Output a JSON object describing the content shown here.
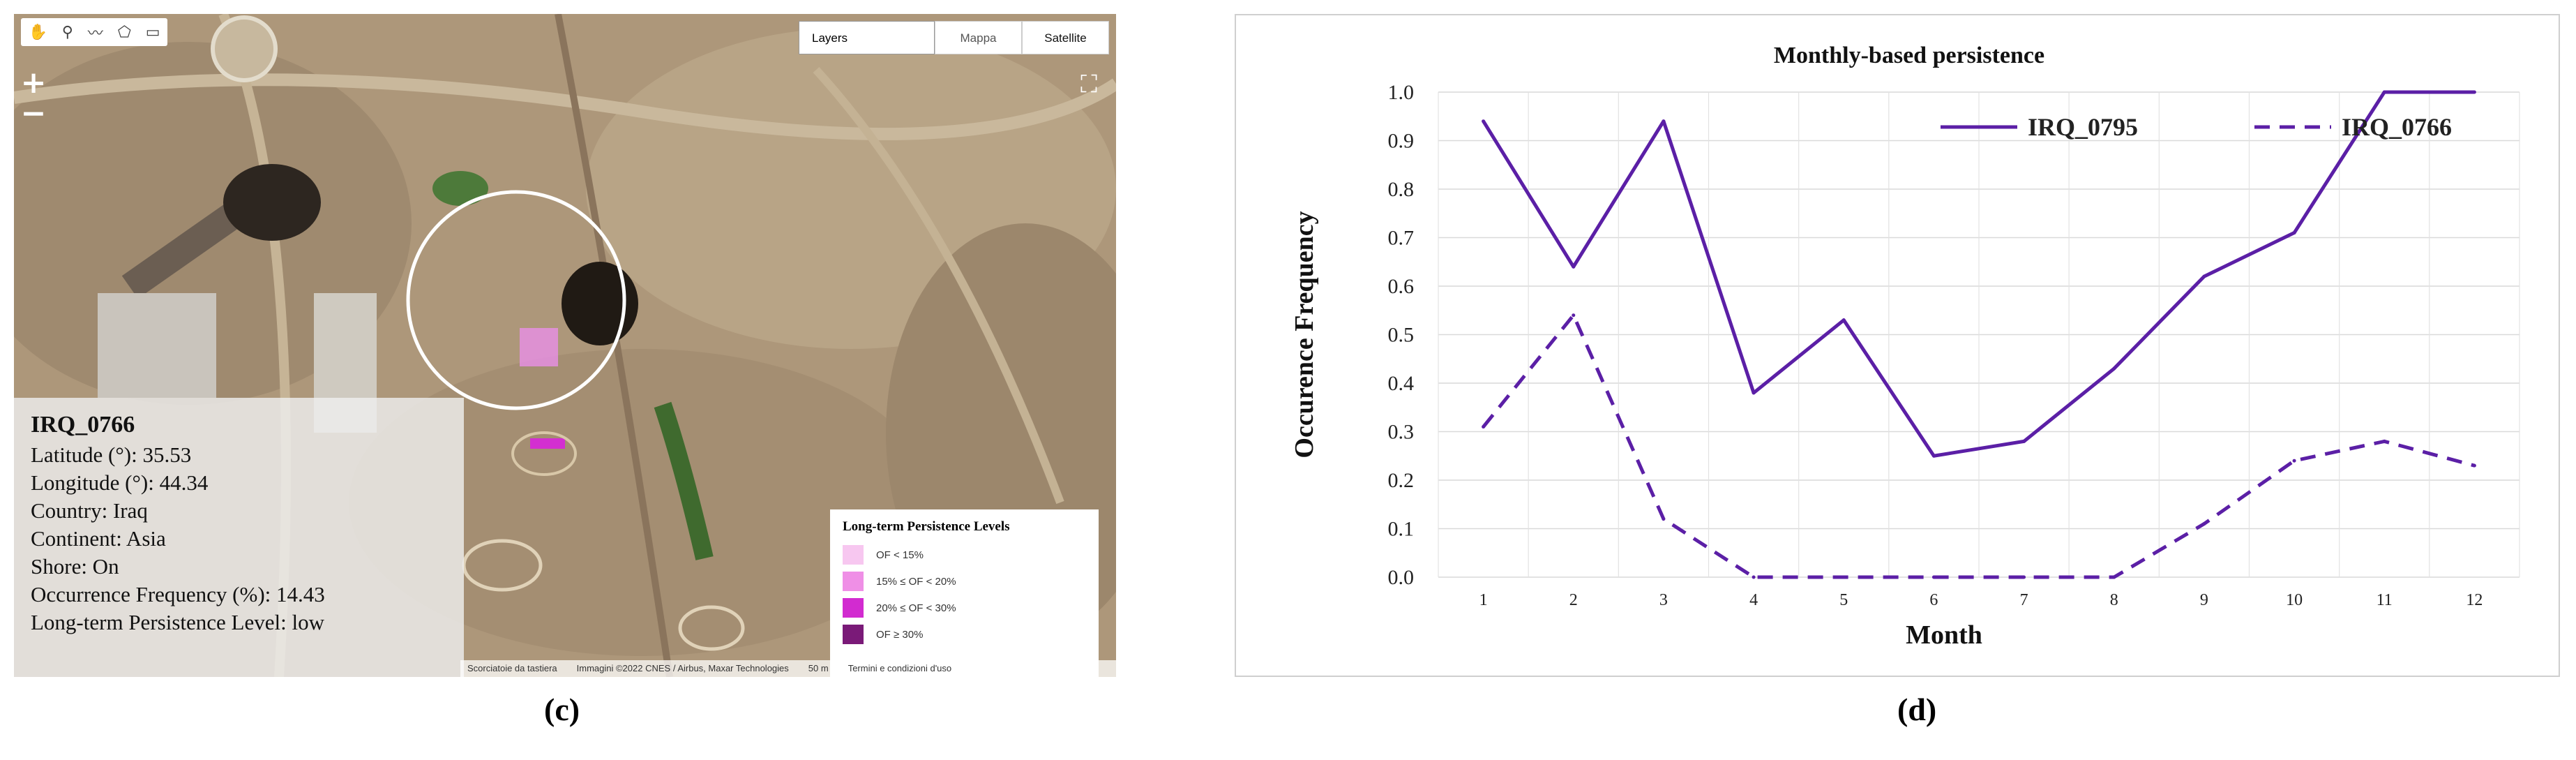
{
  "panels": {
    "c": {
      "label": "(c)",
      "map": {
        "tools": [
          "hand-icon",
          "marker-icon",
          "polyline-icon",
          "polygon-icon",
          "rectangle-icon"
        ],
        "zoom_in": "+",
        "zoom_out": "−",
        "layers_label": "Layers",
        "map_types": [
          "Mappa",
          "Satellite"
        ],
        "selected_map_type": "Satellite",
        "info": {
          "title": "IRQ_0766",
          "rows": [
            "Latitude (°): 35.53",
            "Longitude (°): 44.34",
            "Country: Iraq",
            "Continent: Asia",
            "Shore: On",
            "Occurrence Frequency (%): 14.43",
            "Long-term Persistence Level: low"
          ]
        },
        "legend": {
          "title": "Long-term Persistence Levels",
          "items": [
            {
              "label": "OF < 15%",
              "color": "#f7c7f0"
            },
            {
              "label": "15% ≤ OF < 20%",
              "color": "#ef8fe6"
            },
            {
              "label": "20% ≤ OF < 30%",
              "color": "#d22bd0"
            },
            {
              "label": "OF ≥ 30%",
              "color": "#7a1a78"
            }
          ]
        },
        "attribution": [
          "Scorciatoie da tastiera",
          "Immagini ©2022 CNES / Airbus, Maxar Technologies",
          "50 m",
          "Termini e condizioni d'uso"
        ]
      }
    },
    "d": {
      "label": "(d)"
    }
  },
  "chart_data": {
    "type": "line",
    "title": "Monthly-based persistence",
    "xlabel": "Month",
    "ylabel": "Occurence Frequency",
    "categories": [
      "1",
      "2",
      "3",
      "4",
      "5",
      "6",
      "7",
      "8",
      "9",
      "10",
      "11",
      "12"
    ],
    "ylim": [
      0,
      1.0
    ],
    "yticks": [
      "0.0",
      "0.1",
      "0.2",
      "0.3",
      "0.4",
      "0.5",
      "0.6",
      "0.7",
      "0.8",
      "0.9",
      "1.0"
    ],
    "grid": true,
    "legend_position": "top-right",
    "series": [
      {
        "name": "IRQ_0795",
        "style": "solid",
        "color": "#5b1fa6",
        "values": [
          0.94,
          0.64,
          0.94,
          0.38,
          0.53,
          0.25,
          0.28,
          0.43,
          0.62,
          0.71,
          1.0,
          1.0
        ]
      },
      {
        "name": "IRQ_0766",
        "style": "dashed",
        "color": "#5b1fa6",
        "values": [
          0.31,
          0.54,
          0.12,
          0.0,
          0.0,
          0.0,
          0.0,
          0.0,
          0.11,
          0.24,
          0.28,
          0.23
        ]
      }
    ]
  }
}
